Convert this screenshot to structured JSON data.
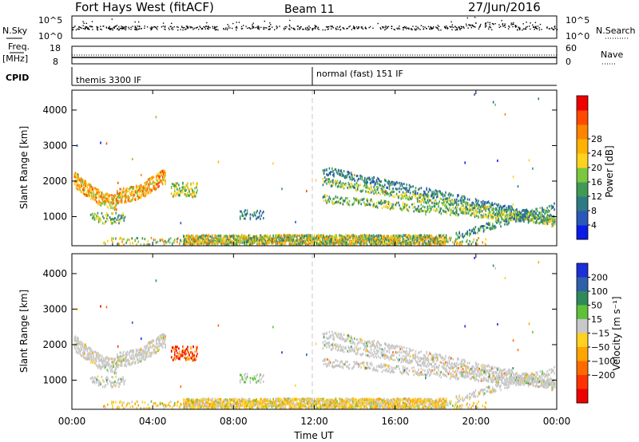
{
  "header": {
    "station": "Fort Hays West (fitACF)",
    "beam": "Beam 11",
    "date": "27/Jun/2016"
  },
  "strips": {
    "nsky_label": "N.Sky",
    "nsearch_label": "N.Search",
    "nsky_ticks": [
      "10^5",
      "10^0"
    ],
    "nsearch_ticks": [
      "10^5",
      "10^0"
    ],
    "freq_label": "Freq.",
    "freq_unit": "[MHz]",
    "freq_ticks": [
      "18",
      "8"
    ],
    "nave_label": "Nave",
    "nave_ticks": [
      "60",
      "0"
    ],
    "cpid_label": "CPID",
    "cpid_segments": [
      {
        "name": "themis 3300 IF",
        "start_hour": 0
      },
      {
        "name": "normal (fast) 151 IF",
        "start_hour": 12
      }
    ]
  },
  "chart_data": [
    {
      "type": "heatmap",
      "name": "power",
      "ylabel": "Slant Range [km]",
      "y_ticks": [
        1000,
        2000,
        3000,
        4000
      ],
      "ylim": [
        180,
        4560
      ],
      "colorbar": {
        "label": "Power [dB]",
        "ticks": [
          "4",
          "8",
          "12",
          "16",
          "20",
          "24",
          "28"
        ],
        "colors": [
          "#0a1be6",
          "#2a58b8",
          "#2e7a82",
          "#3f9a55",
          "#7cc740",
          "#ffd21f",
          "#ffb300",
          "#ff8400",
          "#ff4a00",
          "#ee0000"
        ]
      }
    },
    {
      "type": "heatmap",
      "name": "velocity",
      "ylabel": "Slant Range [km]",
      "y_ticks": [
        1000,
        2000,
        3000,
        4000
      ],
      "ylim": [
        180,
        4560
      ],
      "colorbar": {
        "label": "Velocity [m s⁻¹]",
        "ticks": [
          "200",
          "100",
          "50",
          "15",
          "−15",
          "−50",
          "−100",
          "−200"
        ],
        "colors": [
          "#1a2fd8",
          "#2f5fa8",
          "#2f8a5a",
          "#5fc13a",
          "#c8c8c8",
          "#ffd21f",
          "#ffa500",
          "#ff6a00",
          "#ff3300",
          "#ee0000"
        ]
      }
    }
  ],
  "x_axis": {
    "label": "Time UT",
    "ticks": [
      "00:00",
      "04:00",
      "08:00",
      "12:00",
      "16:00",
      "20:00",
      "00:00"
    ]
  }
}
